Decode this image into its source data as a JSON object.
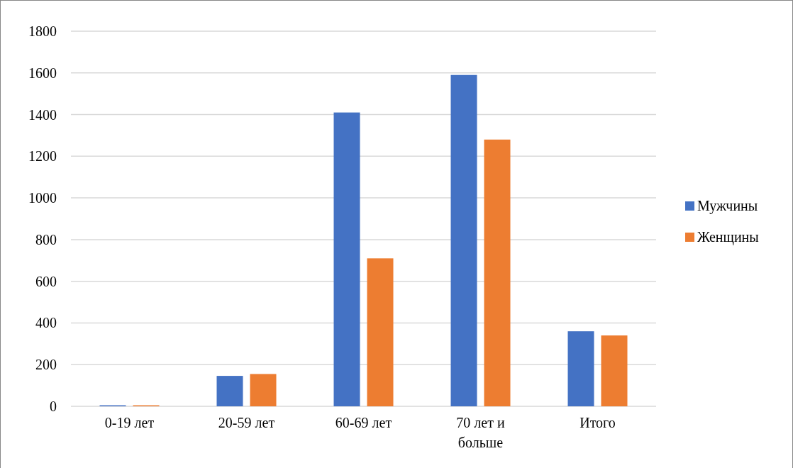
{
  "chart_data": {
    "type": "bar",
    "categories": [
      "0-19 лет",
      "20-59 лет",
      "60-69 лет",
      "70 лет и больше",
      "Итого"
    ],
    "series": [
      {
        "name": "Мужчины",
        "color": "#4472c4",
        "values": [
          5,
          146,
          1410,
          1590,
          360
        ]
      },
      {
        "name": "Женщины",
        "color": "#ed7d31",
        "values": [
          5,
          155,
          710,
          1280,
          340
        ]
      }
    ],
    "ylim": [
      0,
      1800
    ],
    "yticks": [
      0,
      200,
      400,
      600,
      800,
      1000,
      1200,
      1400,
      1600,
      1800
    ],
    "grid": "y",
    "legend": "right"
  }
}
